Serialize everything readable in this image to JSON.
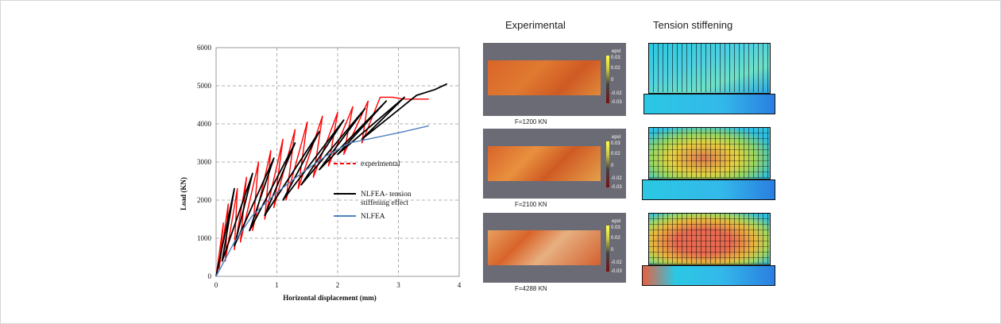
{
  "chart_data": {
    "type": "line",
    "title": "",
    "xlabel": "Horizontal displacement (mm)",
    "ylabel": "Load (KN)",
    "xlim": [
      0,
      4
    ],
    "ylim": [
      0,
      6000
    ],
    "xticks": [
      "0",
      "1",
      "2",
      "3",
      "4"
    ],
    "yticks": [
      "0",
      "1000",
      "2000",
      "3000",
      "4000",
      "5000",
      "6000"
    ],
    "grid": true,
    "legend_position": "right",
    "series": [
      {
        "name": "experimental",
        "color": "#ff0000",
        "dash": "dashed",
        "x": [
          0,
          0.12,
          0.05,
          0.2,
          0.15,
          0.35,
          0.3,
          0.5,
          0.4,
          0.7,
          0.6,
          0.9,
          0.8,
          1.1,
          0.95,
          1.3,
          1.15,
          1.5,
          1.35,
          1.75,
          1.6,
          2.0,
          1.85,
          2.25,
          2.1,
          2.5,
          2.4,
          2.7,
          2.9,
          3.1,
          3.5
        ],
        "y": [
          0,
          1400,
          200,
          1900,
          400,
          2300,
          700,
          2600,
          900,
          3000,
          1200,
          3300,
          1500,
          3600,
          1800,
          3850,
          2000,
          4050,
          2300,
          4200,
          2600,
          4300,
          2900,
          4450,
          3200,
          4600,
          3500,
          4700,
          4700,
          4650,
          4650
        ]
      },
      {
        "name": "NLFEA- tension stiffening effect",
        "color": "#000000",
        "dash": "solid",
        "x": [
          0,
          0.3,
          0.1,
          0.6,
          0.3,
          0.95,
          0.55,
          1.3,
          0.8,
          1.7,
          1.1,
          2.1,
          1.4,
          2.45,
          1.7,
          2.8,
          2.0,
          3.1,
          2.4,
          3.3,
          3.6,
          3.8
        ],
        "y": [
          0,
          2300,
          400,
          2700,
          800,
          3100,
          1200,
          3500,
          1600,
          3800,
          2000,
          4100,
          2400,
          4400,
          2800,
          4600,
          3200,
          4700,
          3600,
          4750,
          4900,
          5050
        ]
      },
      {
        "name": "NLFEA",
        "color": "#4f81bd",
        "dash": "solid",
        "x": [
          0,
          0.3,
          0.6,
          1.0,
          1.4,
          1.8,
          2.2,
          2.5,
          2.8,
          3.1,
          3.5
        ],
        "y": [
          0,
          900,
          1600,
          2200,
          2700,
          3150,
          3500,
          3600,
          3700,
          3800,
          3950
        ]
      }
    ]
  },
  "panels": {
    "experimental": {
      "title": "Experimental",
      "captions": [
        "F=1200 KN",
        "F=2100 KN",
        "F=4288 KN"
      ],
      "colorbar": {
        "label": "epsI",
        "ticks": [
          "0.03",
          "0.02",
          "0",
          "-0.02",
          "-0.03"
        ]
      }
    },
    "tension_stiffening": {
      "title": "Tension stiffening"
    }
  }
}
